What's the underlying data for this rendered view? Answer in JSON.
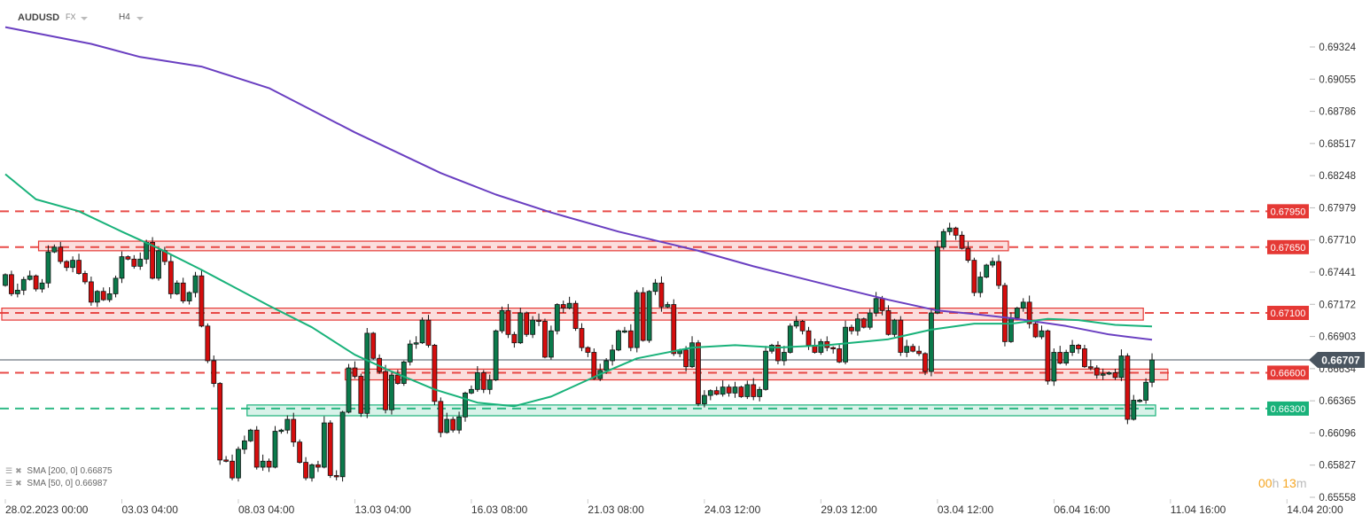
{
  "header": {
    "symbol": "AUDUSD",
    "market": "FX",
    "timeframe": "H4"
  },
  "indicators": [
    {
      "name": "SMA",
      "params": "[200,  0]",
      "value": "0.66875",
      "color": "#6a3fc1"
    },
    {
      "name": "SMA",
      "params": "[50,  0]",
      "value": "0.66987",
      "color": "#19b27a"
    }
  ],
  "timer": {
    "hours": "00",
    "h": "h",
    "minutes": "13",
    "m": "m"
  },
  "chart_data": {
    "type": "candlestick",
    "symbol": "AUDUSD",
    "timeframe": "H4",
    "ylim": [
      0.65558,
      0.69324
    ],
    "y_ticks": [
      "0.69324",
      "0.69055",
      "0.68786",
      "0.68517",
      "0.68248",
      "0.67979",
      "0.67710",
      "0.67441",
      "0.67172",
      "0.66903",
      "0.66634",
      "0.66365",
      "0.66096",
      "0.65827",
      "0.65558"
    ],
    "x_ticks": [
      {
        "bar": 0,
        "label": "28.02.2023  00:00"
      },
      {
        "bar": 19,
        "label": "03.03  04:00"
      },
      {
        "bar": 38,
        "label": "08.03  04:00"
      },
      {
        "bar": 57,
        "label": "13.03  04:00"
      },
      {
        "bar": 76,
        "label": "16.03  08:00"
      },
      {
        "bar": 95,
        "label": "21.03  08:00"
      },
      {
        "bar": 114,
        "label": "24.03  12:00"
      },
      {
        "bar": 133,
        "label": "29.03  12:00"
      },
      {
        "bar": 152,
        "label": "03.04  12:00"
      },
      {
        "bar": 171,
        "label": "06.04  16:00"
      },
      {
        "bar": 190,
        "label": "11.04  16:00"
      },
      {
        "bar": 209,
        "label": "14.04  20:00"
      }
    ],
    "first_open": 0.6733,
    "closes": [
      0.6742,
      0.6726,
      0.6729,
      0.6738,
      0.6741,
      0.673,
      0.6735,
      0.6761,
      0.6765,
      0.6753,
      0.6748,
      0.6754,
      0.6743,
      0.6736,
      0.6719,
      0.6728,
      0.6721,
      0.6726,
      0.6739,
      0.6757,
      0.6755,
      0.6749,
      0.6755,
      0.6769,
      0.6739,
      0.6762,
      0.6753,
      0.6726,
      0.6735,
      0.672,
      0.6727,
      0.6741,
      0.6699,
      0.667,
      0.6651,
      0.6587,
      0.6586,
      0.6572,
      0.6596,
      0.6603,
      0.6612,
      0.6581,
      0.6586,
      0.6581,
      0.6611,
      0.6612,
      0.6621,
      0.6602,
      0.6585,
      0.6572,
      0.6583,
      0.6581,
      0.6618,
      0.6574,
      0.6573,
      0.6627,
      0.6664,
      0.6657,
      0.6626,
      0.6693,
      0.6672,
      0.6661,
      0.6629,
      0.6658,
      0.6651,
      0.6669,
      0.6684,
      0.6685,
      0.6704,
      0.6683,
      0.6636,
      0.661,
      0.6621,
      0.6612,
      0.6623,
      0.6643,
      0.6646,
      0.666,
      0.6646,
      0.6654,
      0.6695,
      0.6712,
      0.6692,
      0.6685,
      0.671,
      0.6692,
      0.6704,
      0.6703,
      0.6673,
      0.6695,
      0.6717,
      0.6714,
      0.6718,
      0.6697,
      0.6681,
      0.6677,
      0.6655,
      0.6662,
      0.667,
      0.6679,
      0.6695,
      0.6695,
      0.6681,
      0.6727,
      0.6687,
      0.6728,
      0.6735,
      0.6715,
      0.6717,
      0.6676,
      0.6679,
      0.6665,
      0.6685,
      0.6634,
      0.6641,
      0.6645,
      0.6642,
      0.6648,
      0.6643,
      0.6648,
      0.664,
      0.665,
      0.664,
      0.6646,
      0.6678,
      0.6683,
      0.667,
      0.6677,
      0.6699,
      0.6703,
      0.6695,
      0.6683,
      0.6677,
      0.6686,
      0.6681,
      0.668,
      0.6669,
      0.6698,
      0.6695,
      0.6705,
      0.6698,
      0.671,
      0.6722,
      0.6712,
      0.6692,
      0.6704,
      0.6677,
      0.6682,
      0.6678,
      0.6676,
      0.6661,
      0.671,
      0.6765,
      0.6778,
      0.6781,
      0.6775,
      0.6764,
      0.6754,
      0.6727,
      0.674,
      0.675,
      0.6753,
      0.6733,
      0.6686,
      0.6706,
      0.6714,
      0.6719,
      0.6701,
      0.669,
      0.6695,
      0.6653,
      0.6677,
      0.6668,
      0.6677,
      0.6683,
      0.668,
      0.6665,
      0.6664,
      0.6658,
      0.6659,
      0.666,
      0.6656,
      0.6674,
      0.6621,
      0.6637,
      0.6637,
      0.6652,
      0.66707
    ],
    "series": [
      {
        "name": "SMA 200",
        "color": "#6a3fc1",
        "points": [
          [
            0,
            0.6949
          ],
          [
            14,
            0.6935
          ],
          [
            22,
            0.6924
          ],
          [
            32,
            0.6916
          ],
          [
            43,
            0.6898
          ],
          [
            57,
            0.6861
          ],
          [
            71,
            0.6827
          ],
          [
            80,
            0.6809
          ],
          [
            89,
            0.6794
          ],
          [
            100,
            0.6778
          ],
          [
            113,
            0.6762
          ],
          [
            122,
            0.6749
          ],
          [
            136,
            0.6731
          ],
          [
            144,
            0.6721
          ],
          [
            152,
            0.6712
          ],
          [
            158,
            0.6709
          ],
          [
            165,
            0.6705
          ],
          [
            173,
            0.6699
          ],
          [
            180,
            0.6692
          ],
          [
            187,
            0.66875
          ]
        ]
      },
      {
        "name": "SMA 50",
        "color": "#19b27a",
        "points": [
          [
            0,
            0.6826
          ],
          [
            5,
            0.6805
          ],
          [
            12,
            0.6795
          ],
          [
            19,
            0.6778
          ],
          [
            25,
            0.6764
          ],
          [
            32,
            0.6746
          ],
          [
            43,
            0.6716
          ],
          [
            50,
            0.6698
          ],
          [
            57,
            0.6675
          ],
          [
            63,
            0.6661
          ],
          [
            70,
            0.6646
          ],
          [
            77,
            0.6635
          ],
          [
            83,
            0.6632
          ],
          [
            89,
            0.664
          ],
          [
            98,
            0.6661
          ],
          [
            103,
            0.6672
          ],
          [
            112,
            0.6681
          ],
          [
            119,
            0.6683
          ],
          [
            126,
            0.6681
          ],
          [
            134,
            0.6683
          ],
          [
            144,
            0.6688
          ],
          [
            151,
            0.6696
          ],
          [
            158,
            0.6701
          ],
          [
            164,
            0.6701
          ],
          [
            170,
            0.6705
          ],
          [
            175,
            0.6704
          ],
          [
            181,
            0.67
          ],
          [
            187,
            0.66987
          ]
        ]
      }
    ],
    "zones": [
      {
        "kind": "resistance",
        "from_bar": 6,
        "to_bar": 163,
        "top": 0.677,
        "bottom": 0.6762,
        "color": "#e53935"
      },
      {
        "kind": "resistance",
        "from_bar": 0,
        "to_bar": 185,
        "top": 0.6714,
        "bottom": 0.6704,
        "color": "#e53935"
      },
      {
        "kind": "resistance",
        "from_bar": 56,
        "to_bar": 189,
        "top": 0.6663,
        "bottom": 0.6654,
        "color": "#e53935"
      },
      {
        "kind": "support",
        "from_bar": 40,
        "to_bar": 187,
        "top": 0.6633,
        "bottom": 0.6624,
        "color": "#19b27a"
      }
    ],
    "levels": [
      {
        "value": 0.6795,
        "label": "0.67950",
        "color": "#e53935"
      },
      {
        "value": 0.6765,
        "label": "0.67650",
        "color": "#e53935"
      },
      {
        "value": 0.671,
        "label": "0.67100",
        "color": "#e53935"
      },
      {
        "value": 0.666,
        "label": "0.66600",
        "color": "#e53935"
      },
      {
        "value": 0.663,
        "label": "0.66300",
        "color": "#19b27a"
      }
    ],
    "current_price": {
      "value": 0.66707,
      "label": "0.66707",
      "color": "#4a5560"
    },
    "colors": {
      "up": "#0b7a4b",
      "down": "#d50d0d"
    }
  }
}
